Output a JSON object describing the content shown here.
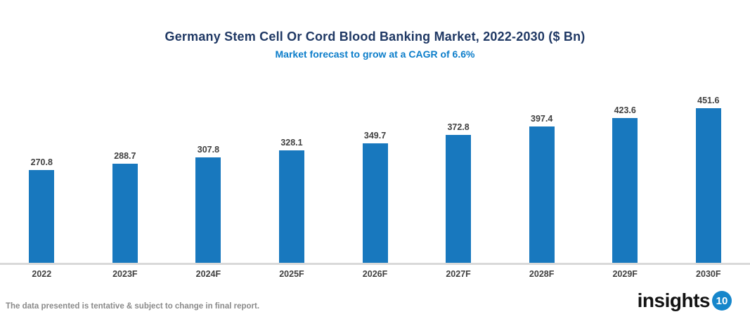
{
  "chart_data": {
    "type": "bar",
    "title": "Germany Stem Cell Or Cord Blood Banking Market, 2022-2030 ($ Bn)",
    "subtitle": "Market forecast to grow at a CAGR of 6.6%",
    "categories": [
      "2022",
      "2023F",
      "2024F",
      "2025F",
      "2026F",
      "2027F",
      "2028F",
      "2029F",
      "2030F"
    ],
    "values": [
      270.8,
      288.7,
      307.8,
      328.1,
      349.7,
      372.8,
      397.4,
      423.6,
      451.6
    ],
    "xlabel": "",
    "ylabel": "",
    "ylim": [
      0,
      500
    ],
    "grid": false,
    "legend": false,
    "value_labels_shown": true
  },
  "footer": {
    "note": "The data presented is tentative & subject to change in final report.",
    "logo_text": "insights",
    "logo_badge": "10"
  },
  "colors": {
    "bar": "#1878be",
    "title": "#1f3864",
    "subtitle": "#0b7dca",
    "axis_line": "#d9d9d9",
    "data_label": "#404040",
    "tick_label": "#404040",
    "note": "#8a8a8a",
    "logo_badge_bg": "#1686cb"
  }
}
